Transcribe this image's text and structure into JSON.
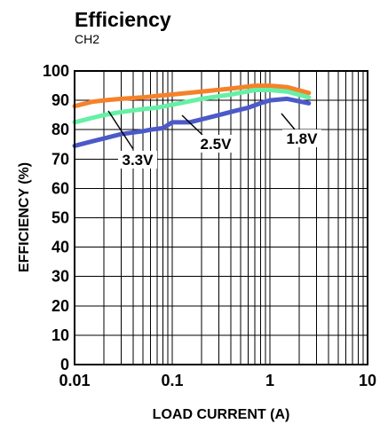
{
  "chart_data": {
    "type": "line",
    "title": "Efficiency",
    "subtitle": "CH2",
    "xlabel": "LOAD CURRENT (A)",
    "ylabel": "EFFICIENCY (%)",
    "x_scale": "log",
    "xlim": [
      0.01,
      10
    ],
    "ylim": [
      0,
      100
    ],
    "grid": true,
    "legend": "none",
    "x_tick_labels": [
      "0.01",
      "0.1",
      "1",
      "10"
    ],
    "y_tick_labels": [
      "0",
      "10",
      "20",
      "30",
      "40",
      "50",
      "60",
      "70",
      "80",
      "90",
      "100"
    ],
    "series": [
      {
        "name": "3.3V",
        "color": "#f5822a",
        "x": [
          0.01,
          0.015,
          0.02,
          0.03,
          0.05,
          0.07,
          0.1,
          0.2,
          0.4,
          0.7,
          1.0,
          1.5,
          2.5
        ],
        "y": [
          88,
          89.5,
          90,
          90.5,
          91,
          91.5,
          92,
          93,
          94,
          95,
          95,
          94.5,
          92.5
        ]
      },
      {
        "name": "2.5V",
        "color": "#66f0a6",
        "x": [
          0.01,
          0.015,
          0.02,
          0.03,
          0.05,
          0.07,
          0.1,
          0.2,
          0.4,
          0.7,
          1.0,
          1.5,
          2.5
        ],
        "y": [
          82.5,
          84,
          85,
          86,
          87,
          87.5,
          88.5,
          90.5,
          92,
          93.5,
          93.5,
          93,
          91
        ]
      },
      {
        "name": "1.8V",
        "color": "#4c59c8",
        "x": [
          0.01,
          0.015,
          0.02,
          0.03,
          0.05,
          0.06,
          0.08,
          0.1,
          0.15,
          0.2,
          0.3,
          0.45,
          0.6,
          0.8,
          1.0,
          1.5,
          2.5
        ],
        "y": [
          74.5,
          76,
          77,
          78.5,
          79.5,
          80,
          80.5,
          82.5,
          82.5,
          83.5,
          85,
          86.5,
          87.5,
          89,
          90,
          90.5,
          89
        ]
      }
    ],
    "annotations": [
      "3.3V",
      "2.5V",
      "1.8V"
    ]
  }
}
